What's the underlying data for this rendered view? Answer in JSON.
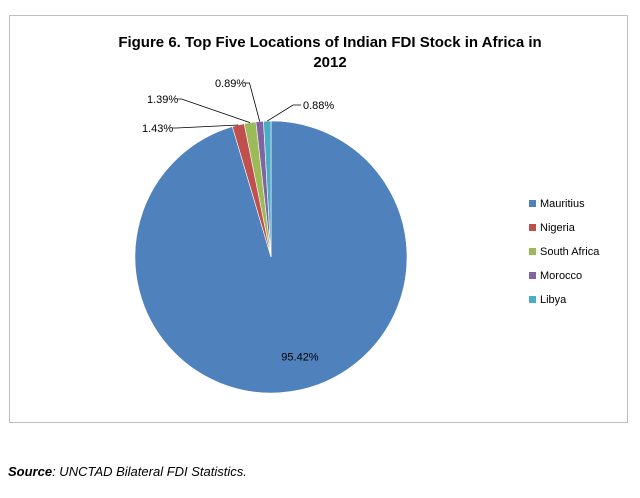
{
  "chart_data": {
    "type": "pie",
    "title_line1": "Figure 6. Top Five Locations of Indian FDI Stock in Africa in",
    "title_line2": "2012",
    "slices": [
      {
        "name": "Mauritius",
        "value": 95.42,
        "label": "95.42%",
        "color": "#4f81bd"
      },
      {
        "name": "Nigeria",
        "value": 1.43,
        "label": "1.43%",
        "color": "#c0504d"
      },
      {
        "name": "South Africa",
        "value": 1.39,
        "label": "1.39%",
        "color": "#9bbb59"
      },
      {
        "name": "Morocco",
        "value": 0.89,
        "label": "0.89%",
        "color": "#8064a2"
      },
      {
        "name": "Libya",
        "value": 0.88,
        "label": "0.88%",
        "color": "#4bacc6"
      }
    ],
    "legend_position": "right"
  },
  "source": {
    "label": "Source",
    "text": ": UNCTAD Bilateral FDI Statistics."
  }
}
